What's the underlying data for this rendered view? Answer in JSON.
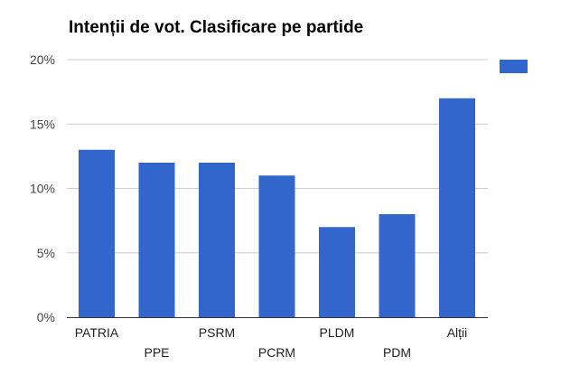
{
  "chart_data": {
    "type": "bar",
    "title": "Intenții de vot. Clasificare pe partide",
    "categories": [
      "PATRIA",
      "PPE",
      "PSRM",
      "PCRM",
      "PLDM",
      "PDM",
      "Alții"
    ],
    "values": [
      13,
      12,
      12,
      11,
      7,
      8,
      17
    ],
    "series": [
      {
        "values": [
          13,
          12,
          12,
          11,
          7,
          8,
          17
        ]
      }
    ],
    "y_ticks": [
      "0%",
      "5%",
      "10%",
      "15%",
      "20%"
    ],
    "ylim": [
      0,
      20
    ],
    "xlabel": "",
    "ylabel": "",
    "grid": true,
    "legend_position": "top-right",
    "bar_color": "#3366cc"
  }
}
